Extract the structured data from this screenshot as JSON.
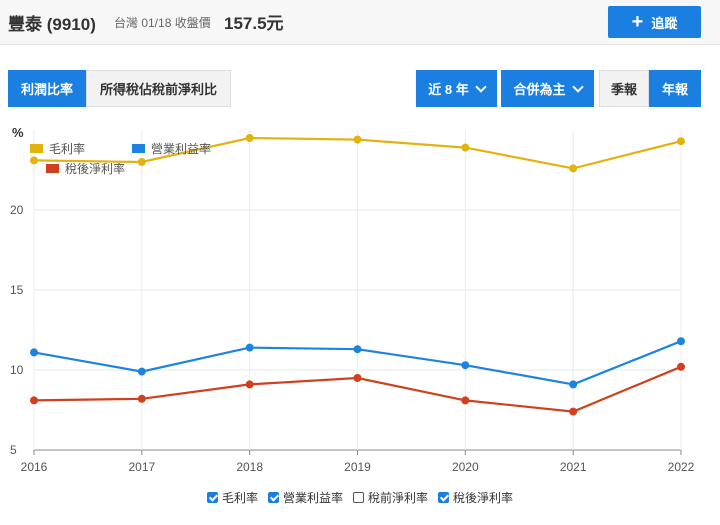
{
  "header": {
    "name": "豐泰",
    "code": "(9910)",
    "meta": "台灣 01/18 收盤價",
    "price": "157.5元",
    "track_label": "追蹤"
  },
  "tabs": [
    {
      "label": "利潤比率",
      "active": true
    },
    {
      "label": "所得稅佔稅前淨利比",
      "active": false
    }
  ],
  "controls": {
    "range_label": "近 8 年",
    "consolidation_label": "合併為主",
    "quarterly_label": "季報",
    "annual_label": "年報"
  },
  "colors": {
    "accent": "#1a7fe0",
    "gross": "#e3b20f",
    "operating": "#1c84e0",
    "net": "#d0401c"
  },
  "chart_data": {
    "type": "line",
    "ylabel": "%",
    "x": [
      "2016",
      "2017",
      "2018",
      "2019",
      "2020",
      "2021",
      "2022"
    ],
    "yticks": [
      5,
      10,
      15,
      20
    ],
    "ylim": [
      5,
      25
    ],
    "grid": true,
    "legend_placement": "top-left",
    "series": [
      {
        "name": "毛利率",
        "key": "gross",
        "values": [
          23.1,
          23.0,
          24.5,
          24.4,
          23.9,
          22.6,
          24.3
        ]
      },
      {
        "name": "營業利益率",
        "key": "operating",
        "values": [
          11.1,
          9.9,
          11.4,
          11.3,
          10.3,
          9.1,
          11.8
        ]
      },
      {
        "name": "稅後淨利率",
        "key": "net",
        "values": [
          8.1,
          8.2,
          9.1,
          9.5,
          8.1,
          7.4,
          10.2
        ]
      }
    ],
    "toggles": [
      {
        "label": "毛利率",
        "checked": true
      },
      {
        "label": "營業利益率",
        "checked": true
      },
      {
        "label": "稅前淨利率",
        "checked": false
      },
      {
        "label": "稅後淨利率",
        "checked": true
      }
    ]
  }
}
